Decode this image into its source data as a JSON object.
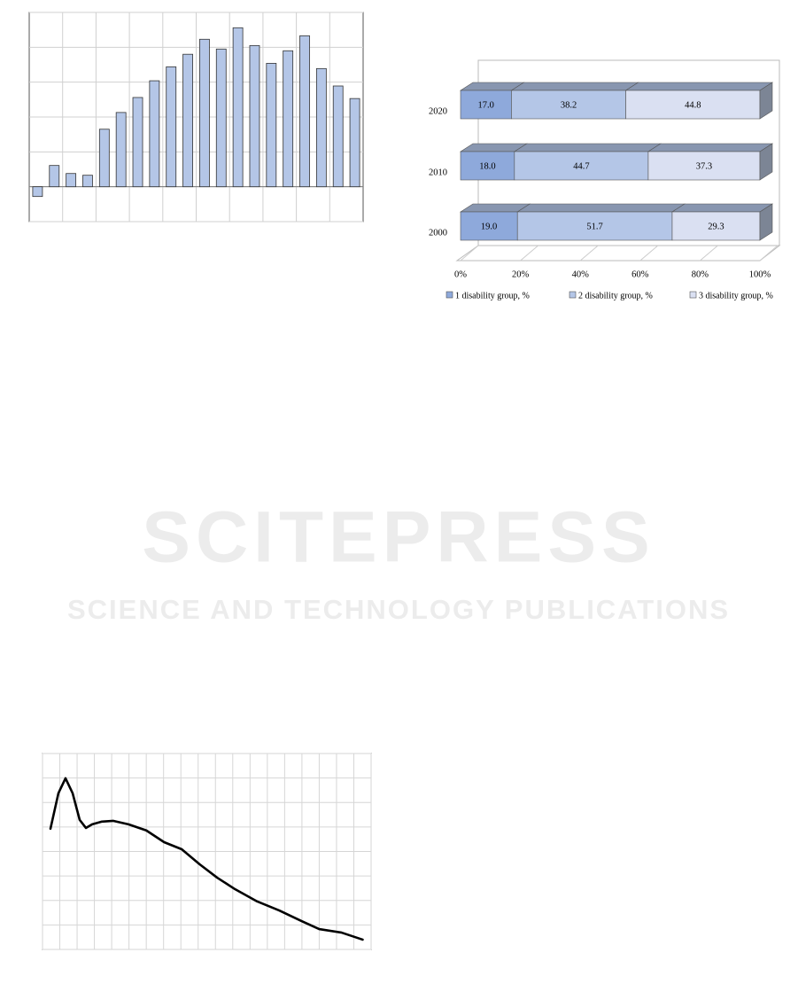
{
  "watermark": {
    "title": "SCITEPRESS",
    "subtitle": "SCIENCE AND TECHNOLOGY PUBLICATIONS"
  },
  "chart_data": [
    {
      "type": "bar",
      "color": "#b4c6e7",
      "categories": [
        null,
        null,
        null,
        null,
        null,
        null,
        null,
        null,
        null,
        null,
        null,
        null,
        null,
        null,
        null,
        null,
        null,
        null,
        null,
        null
      ],
      "values": [
        -0.28,
        0.61,
        0.38,
        0.33,
        1.65,
        2.13,
        2.56,
        3.04,
        3.44,
        3.8,
        4.23,
        3.95,
        4.56,
        4.05,
        3.54,
        3.9,
        4.33,
        3.39,
        2.89,
        2.53
      ],
      "ylim": [
        -1,
        5
      ],
      "yticks": [
        -1,
        0,
        1,
        2,
        3,
        4,
        5
      ],
      "grid": true
    },
    {
      "type": "barh",
      "stacked": true,
      "categories": [
        "2020",
        "2010",
        "2000"
      ],
      "series": [
        {
          "name": "1 disability group, %",
          "color": "#8ea9db",
          "values": [
            17.0,
            18.0,
            19.0
          ],
          "value_labels": [
            "17.0",
            "18.0",
            "19.0"
          ]
        },
        {
          "name": "2 disability group, %",
          "color": "#b4c6e7",
          "values": [
            38.2,
            44.7,
            51.7
          ],
          "value_labels": [
            "38.2",
            "44.7",
            "51.7"
          ]
        },
        {
          "name": "3 disability group, %",
          "color": "#dae0f2",
          "values": [
            44.8,
            37.3,
            29.3
          ],
          "value_labels": [
            "44.8",
            "37.3",
            "29.3"
          ]
        }
      ],
      "xlim": [
        0,
        100
      ],
      "xticks": [
        {
          "value": 0,
          "label": "0%"
        },
        {
          "value": 20,
          "label": "20%"
        },
        {
          "value": 40,
          "label": "40%"
        },
        {
          "value": 60,
          "label": "60%"
        },
        {
          "value": 80,
          "label": "80%"
        },
        {
          "value": 100,
          "label": "100%"
        }
      ],
      "legend": "bottom"
    },
    {
      "type": "line",
      "color": "#000000",
      "x": [
        0.46,
        0.92,
        1.33,
        1.74,
        2.15,
        2.51,
        2.87,
        3.44,
        4.1,
        4.97,
        6.0,
        7.03,
        8.05,
        9.08,
        10.1,
        11.13,
        12.41,
        13.69,
        14.97,
        16.0,
        17.28,
        18.51
      ],
      "values": [
        4.93,
        6.38,
        6.99,
        6.38,
        5.29,
        4.96,
        5.11,
        5.22,
        5.25,
        5.11,
        4.86,
        4.38,
        4.09,
        3.48,
        2.93,
        2.46,
        1.96,
        1.59,
        1.16,
        0.83,
        0.69,
        0.4
      ],
      "xlim": [
        0,
        19
      ],
      "xticks": [
        0,
        1,
        2,
        3,
        4,
        5,
        6,
        7,
        8,
        9,
        10,
        11,
        12,
        13,
        14,
        15,
        16,
        17,
        18,
        19
      ],
      "ylim": [
        0,
        8
      ],
      "yticks": [
        0,
        1,
        2,
        3,
        4,
        5,
        6,
        7,
        8
      ],
      "grid": true
    }
  ]
}
